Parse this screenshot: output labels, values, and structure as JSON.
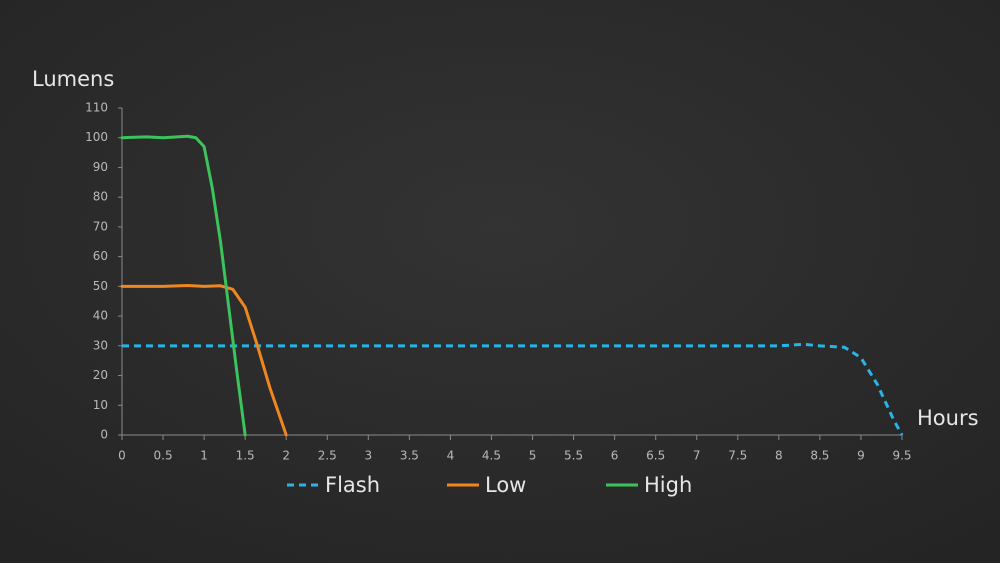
{
  "chart_data": {
    "type": "line",
    "y_label": "Lumens",
    "x_label": "Hours",
    "xlim": [
      0,
      9.5
    ],
    "ylim": [
      0,
      110
    ],
    "xticks": [
      0,
      0.5,
      1,
      1.5,
      2,
      2.5,
      3,
      3.5,
      4,
      4.5,
      5,
      5.5,
      6,
      6.5,
      7,
      7.5,
      8,
      8.5,
      9,
      9.5
    ],
    "yticks": [
      0,
      10,
      20,
      30,
      40,
      50,
      60,
      70,
      80,
      90,
      100,
      110
    ],
    "series": [
      {
        "name": "Flash",
        "color": "#2ab4e6",
        "dashed": true,
        "x": [
          0,
          8,
          8.3,
          8.5,
          8.8,
          9,
          9.2,
          9.4,
          9.5
        ],
        "values": [
          30,
          30,
          30.5,
          30,
          29.5,
          26,
          17,
          5,
          0
        ]
      },
      {
        "name": "Low",
        "color": "#f0861f",
        "dashed": false,
        "x": [
          0,
          0.5,
          0.8,
          1,
          1.2,
          1.35,
          1.5,
          1.65,
          1.8,
          1.9,
          2
        ],
        "values": [
          50,
          50,
          50.3,
          50,
          50.2,
          49,
          43,
          30,
          16,
          8,
          0
        ]
      },
      {
        "name": "High",
        "color": "#3cc45c",
        "dashed": false,
        "x": [
          0,
          0.3,
          0.5,
          0.8,
          0.9,
          1,
          1.1,
          1.2,
          1.3,
          1.4,
          1.5
        ],
        "values": [
          100,
          100.3,
          100,
          100.5,
          100,
          97,
          83,
          65,
          43,
          21,
          0
        ]
      }
    ]
  }
}
